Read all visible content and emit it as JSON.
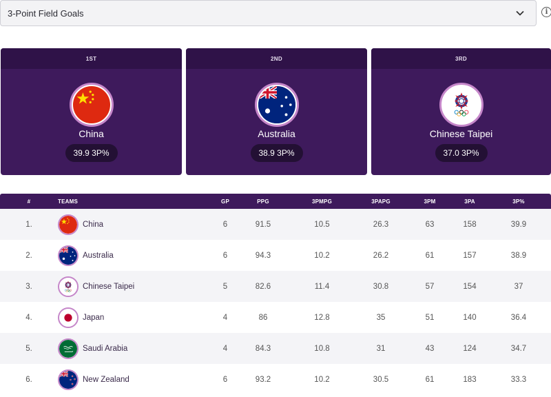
{
  "selector": {
    "value": "3-Point Field Goals"
  },
  "podium": [
    {
      "rank": "1ST",
      "team": "China",
      "pct": "39.9 3P%"
    },
    {
      "rank": "2ND",
      "team": "Australia",
      "pct": "38.9 3P%"
    },
    {
      "rank": "3RD",
      "team": "Chinese Taipei",
      "pct": "37.0 3P%"
    }
  ],
  "table": {
    "headers": {
      "rank": "#",
      "team": "TEAMS",
      "gp": "GP",
      "ppg": "PPG",
      "tpmpg": "3PMPG",
      "tpapg": "3PAPG",
      "tpm": "3PM",
      "tpa": "3PA",
      "tpp": "3P%"
    },
    "rows": [
      {
        "rank": "1.",
        "team": "China",
        "gp": "6",
        "ppg": "91.5",
        "tpmpg": "10.5",
        "tpapg": "26.3",
        "tpm": "63",
        "tpa": "158",
        "tpp": "39.9"
      },
      {
        "rank": "2.",
        "team": "Australia",
        "gp": "6",
        "ppg": "94.3",
        "tpmpg": "10.2",
        "tpapg": "26.2",
        "tpm": "61",
        "tpa": "157",
        "tpp": "38.9"
      },
      {
        "rank": "3.",
        "team": "Chinese Taipei",
        "gp": "5",
        "ppg": "82.6",
        "tpmpg": "11.4",
        "tpapg": "30.8",
        "tpm": "57",
        "tpa": "154",
        "tpp": "37"
      },
      {
        "rank": "4.",
        "team": "Japan",
        "gp": "4",
        "ppg": "86",
        "tpmpg": "12.8",
        "tpapg": "35",
        "tpm": "51",
        "tpa": "140",
        "tpp": "36.4"
      },
      {
        "rank": "5.",
        "team": "Saudi Arabia",
        "gp": "4",
        "ppg": "84.3",
        "tpmpg": "10.8",
        "tpapg": "31",
        "tpm": "43",
        "tpa": "124",
        "tpp": "34.7"
      },
      {
        "rank": "6.",
        "team": "New Zealand",
        "gp": "6",
        "ppg": "93.2",
        "tpmpg": "10.2",
        "tpapg": "30.5",
        "tpm": "61",
        "tpa": "183",
        "tpp": "33.3"
      }
    ]
  },
  "colors": {
    "brand_purple": "#3e1a5c",
    "header_purple": "#2f1248",
    "ring": "#c586c9"
  },
  "icons": {
    "dropdown": "chevron-down-icon",
    "info": "info-icon"
  }
}
